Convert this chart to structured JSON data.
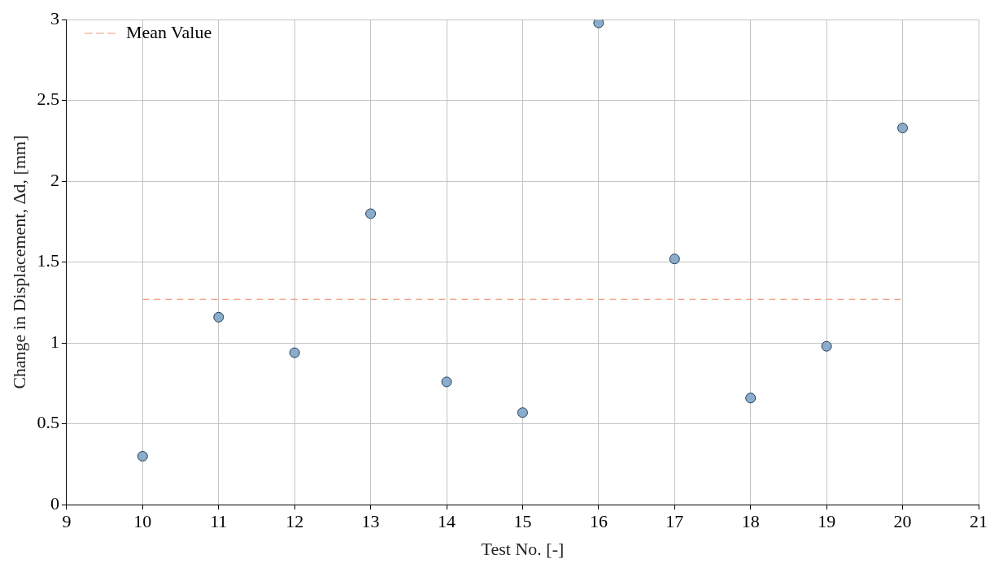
{
  "chart_data": {
    "type": "scatter",
    "xlabel": "Test No. [-]",
    "ylabel": "Change in Displacement, Δd, [mm]",
    "x": [
      10,
      11,
      12,
      13,
      14,
      15,
      16,
      17,
      18,
      19,
      20
    ],
    "series": [
      {
        "color": "#8cadc9",
        "values": [
          0.3,
          1.16,
          0.94,
          1.8,
          0.76,
          0.57,
          2.98,
          1.52,
          0.66,
          0.98,
          2.33
        ],
        "marker": "circle"
      },
      {
        "type": "line",
        "name": "Mean Value",
        "color": "#f0a080",
        "x": [
          10,
          20
        ],
        "values": [
          1.27,
          1.27
        ],
        "line_style": "dashed",
        "marker": "none"
      }
    ],
    "xlim": [
      9,
      21
    ],
    "xticks": [
      9,
      10,
      11,
      12,
      13,
      14,
      15,
      16,
      17,
      18,
      19,
      20,
      21
    ],
    "ylim": [
      0,
      3
    ],
    "yticks": [
      0,
      0.5,
      1,
      1.5,
      2,
      2.5,
      3
    ],
    "grid": true,
    "legend": "top left"
  }
}
